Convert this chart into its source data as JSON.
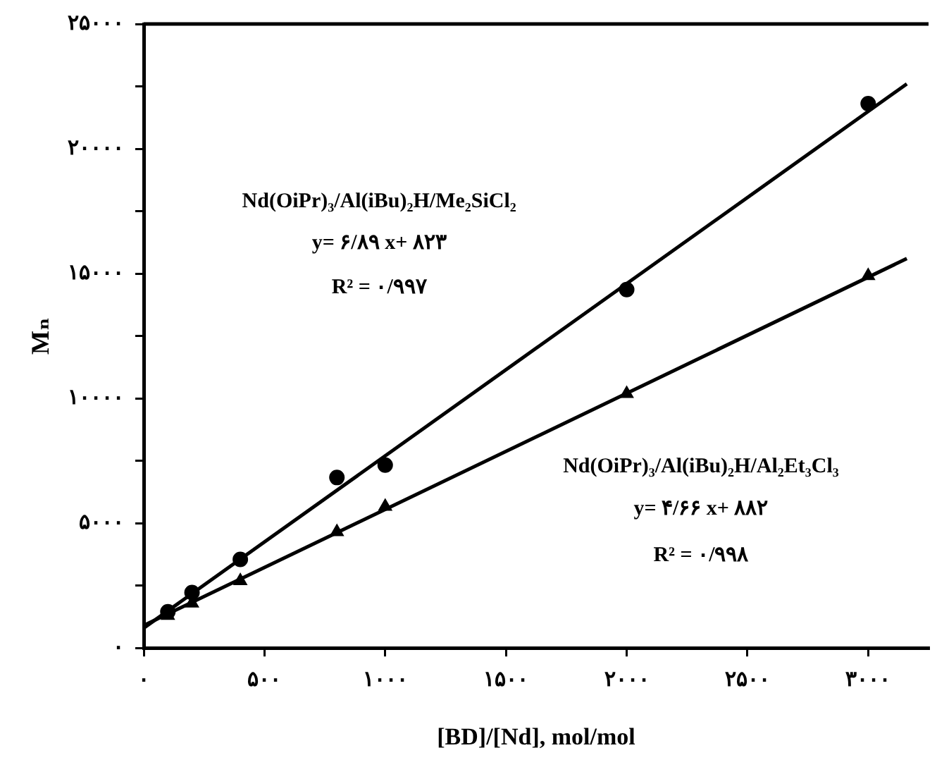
{
  "chart_data": {
    "type": "scatter",
    "xlabel": "[BD]/[Nd], mol/mol",
    "ylabel": "Mₙ",
    "xlim": [
      0,
      3250
    ],
    "ylim": [
      0,
      25000
    ],
    "xticks": [
      {
        "value": 0,
        "label": "۰"
      },
      {
        "value": 500,
        "label": "۵۰۰"
      },
      {
        "value": 1000,
        "label": "۱۰۰۰"
      },
      {
        "value": 1500,
        "label": "۱۵۰۰"
      },
      {
        "value": 2000,
        "label": "۲۰۰۰"
      },
      {
        "value": 2500,
        "label": "۲۵۰۰"
      },
      {
        "value": 3000,
        "label": "۳۰۰۰"
      }
    ],
    "yticks": [
      {
        "value": 0,
        "label": "۰"
      },
      {
        "value": 2500,
        "label": null
      },
      {
        "value": 5000,
        "label": "۵۰۰۰"
      },
      {
        "value": 7500,
        "label": null
      },
      {
        "value": 10000,
        "label": "۱۰۰۰۰"
      },
      {
        "value": 12500,
        "label": null
      },
      {
        "value": 15000,
        "label": "۱۵۰۰۰"
      },
      {
        "value": 17500,
        "label": null
      },
      {
        "value": 20000,
        "label": "۲۰۰۰۰"
      },
      {
        "value": 22500,
        "label": null
      },
      {
        "value": 25000,
        "label": "۲۵۰۰۰"
      }
    ],
    "grid": false,
    "legend": false,
    "series": [
      {
        "type": "scatter",
        "marker": "circle",
        "color": "#000000",
        "x": [
          100,
          200,
          400,
          800,
          1000,
          2000,
          3000
        ],
        "values": [
          1450,
          2220,
          3550,
          6830,
          7330,
          14360,
          21810
        ]
      },
      {
        "type": "scatter",
        "marker": "triangle",
        "color": "#000000",
        "x": [
          100,
          200,
          400,
          800,
          1000,
          2000,
          3000
        ],
        "values": [
          1300,
          1790,
          2690,
          4650,
          5670,
          10190,
          14910
        ]
      },
      {
        "type": "line",
        "marker": "none",
        "line_style": "solid",
        "color": "#000000",
        "x": [
          0,
          3160
        ],
        "values": [
          800,
          22600
        ]
      },
      {
        "type": "line",
        "marker": "none",
        "line_style": "solid",
        "color": "#000000",
        "x": [
          0,
          3160
        ],
        "values": [
          900,
          15600
        ]
      }
    ],
    "annotations": [
      "Nd(OiPr)₃/Al(iBu)₂H/Me₂SiCl₂",
      "y= ۶/۸۹ x+ ۸۲۳",
      "R² = ۰/۹۹۷",
      "Nd(OiPr)₃/Al(iBu)₂H/Al₂Et₃Cl₃",
      "y= ۴/۶۶ x+ ۸۸۲",
      "R² = ۰/۹۹۸"
    ]
  }
}
